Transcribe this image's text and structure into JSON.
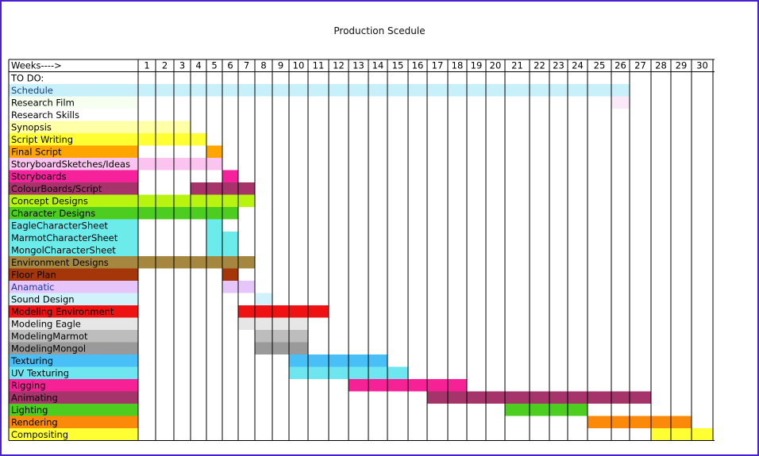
{
  "title": "Production Scedule",
  "chart_data": {
    "type": "table",
    "corner_label": "Weeks---->",
    "weeks": [
      1,
      2,
      3,
      4,
      5,
      6,
      7,
      8,
      9,
      10,
      11,
      12,
      13,
      14,
      15,
      16,
      17,
      18,
      19,
      20,
      21,
      22,
      23,
      24,
      25,
      26,
      27,
      28,
      29,
      30
    ],
    "tasks": [
      {
        "name": "TO DO:",
        "label_color": "#ffffff",
        "text_color": "#000000",
        "start": null,
        "end": null,
        "color": null
      },
      {
        "name": "Schedule",
        "label_color": "#c8f0fa",
        "text_color": "#123d8a",
        "start": 1,
        "end": 26,
        "color": "#c8f0fa"
      },
      {
        "name": "Research Film",
        "label_color": "#f7fff0",
        "text_color": "#000000",
        "start": 26,
        "end": 26,
        "color": "#fbe8f8"
      },
      {
        "name": "Research Skills",
        "label_color": "#ffffff",
        "text_color": "#000000",
        "start": null,
        "end": null,
        "color": null
      },
      {
        "name": "Synopsis",
        "label_color": "#ffffa8",
        "text_color": "#000000",
        "start": 1,
        "end": 3,
        "color": "#ffffa8"
      },
      {
        "name": "Script Writing",
        "label_color": "#ffff33",
        "text_color": "#000000",
        "start": 1,
        "end": 4,
        "color": "#ffff33"
      },
      {
        "name": "Final Script",
        "label_color": "#ffa500",
        "text_color": "#000000",
        "start": 5,
        "end": 5,
        "color": "#ffa500"
      },
      {
        "name": "StoryboardSketches/Ideas",
        "label_color": "#fbc3ef",
        "text_color": "#000000",
        "start": 1,
        "end": 5,
        "color": "#fbc3ef"
      },
      {
        "name": "Storyboards",
        "label_color": "#f6229b",
        "text_color": "#000000",
        "start": 6,
        "end": 6,
        "color": "#f6229b"
      },
      {
        "name": "ColourBoards/Script",
        "label_color": "#a6346b",
        "text_color": "#000000",
        "start": 4,
        "end": 7,
        "color": "#a6346b"
      },
      {
        "name": "Concept Designs",
        "label_color": "#b9f411",
        "text_color": "#000000",
        "start": 1,
        "end": 7,
        "color": "#b9f411"
      },
      {
        "name": "Character Designs",
        "label_color": "#4dcd1f",
        "text_color": "#000000",
        "start": 1,
        "end": 6,
        "color": "#4dcd1f"
      },
      {
        "name": "EagleCharacterSheet",
        "label_color": "#6beceb",
        "text_color": "#000000",
        "start": 5,
        "end": 5,
        "color": "#6beceb"
      },
      {
        "name": "MarmotCharacterSheet",
        "label_color": "#6beceb",
        "text_color": "#000000",
        "start": 5,
        "end": 6,
        "color": "#6beceb"
      },
      {
        "name": "MongolCharacterSheet",
        "label_color": "#6beceb",
        "text_color": "#000000",
        "start": 5,
        "end": 6,
        "color": "#6beceb"
      },
      {
        "name": "Environment Designs",
        "label_color": "#a5873f",
        "text_color": "#000000",
        "start": 1,
        "end": 7,
        "color": "#a5873f"
      },
      {
        "name": "Floor Plan",
        "label_color": "#a43609",
        "text_color": "#000000",
        "start": 6,
        "end": 6,
        "color": "#a43609"
      },
      {
        "name": "Anamatic",
        "label_color": "#e6c6fa",
        "text_color": "#1a3aa8",
        "start": 6,
        "end": 7,
        "color": "#e6c6fa"
      },
      {
        "name": "Sound Design",
        "label_color": "#d0f3fb",
        "text_color": "#000000",
        "start": 8,
        "end": 8,
        "color": "#d0f3fb"
      },
      {
        "name": "Modeling Environment",
        "label_color": "#ef1212",
        "text_color": "#000000",
        "start": 7,
        "end": 11,
        "color": "#ef1212"
      },
      {
        "name": "Modeling Eagle",
        "label_color": "#e6e6e6",
        "text_color": "#000000",
        "start": 7,
        "end": 10,
        "color": "#e6e6e6"
      },
      {
        "name": "ModelingMarmot",
        "label_color": "#bdbdbd",
        "text_color": "#000000",
        "start": 8,
        "end": 10,
        "color": "#bdbdbd"
      },
      {
        "name": "ModelingMongol",
        "label_color": "#9a9a9a",
        "text_color": "#000000",
        "start": 8,
        "end": 10,
        "color": "#9a9a9a"
      },
      {
        "name": "Texturing",
        "label_color": "#48bff6",
        "text_color": "#000000",
        "start": 10,
        "end": 14,
        "color": "#48bff6"
      },
      {
        "name": "UV Texturing",
        "label_color": "#6ee6f0",
        "text_color": "#000000",
        "start": 10,
        "end": 15,
        "color": "#6ee6f0"
      },
      {
        "name": "Rigging",
        "label_color": "#f62295",
        "text_color": "#000000",
        "start": 13,
        "end": 18,
        "color": "#f62295"
      },
      {
        "name": "Animating",
        "label_color": "#a5346a",
        "text_color": "#000000",
        "start": 17,
        "end": 27,
        "color": "#a5346a"
      },
      {
        "name": "Lighting",
        "label_color": "#4dcd1f",
        "text_color": "#000000",
        "start": 21,
        "end": 24,
        "color": "#4dcd1f"
      },
      {
        "name": "Rendering",
        "label_color": "#fc8a0a",
        "text_color": "#000000",
        "start": 25,
        "end": 29,
        "color": "#fc8a0a"
      },
      {
        "name": "Compositing",
        "label_color": "#ffff33",
        "text_color": "#000000",
        "start": 28,
        "end": 30,
        "color": "#ffff33"
      }
    ]
  }
}
